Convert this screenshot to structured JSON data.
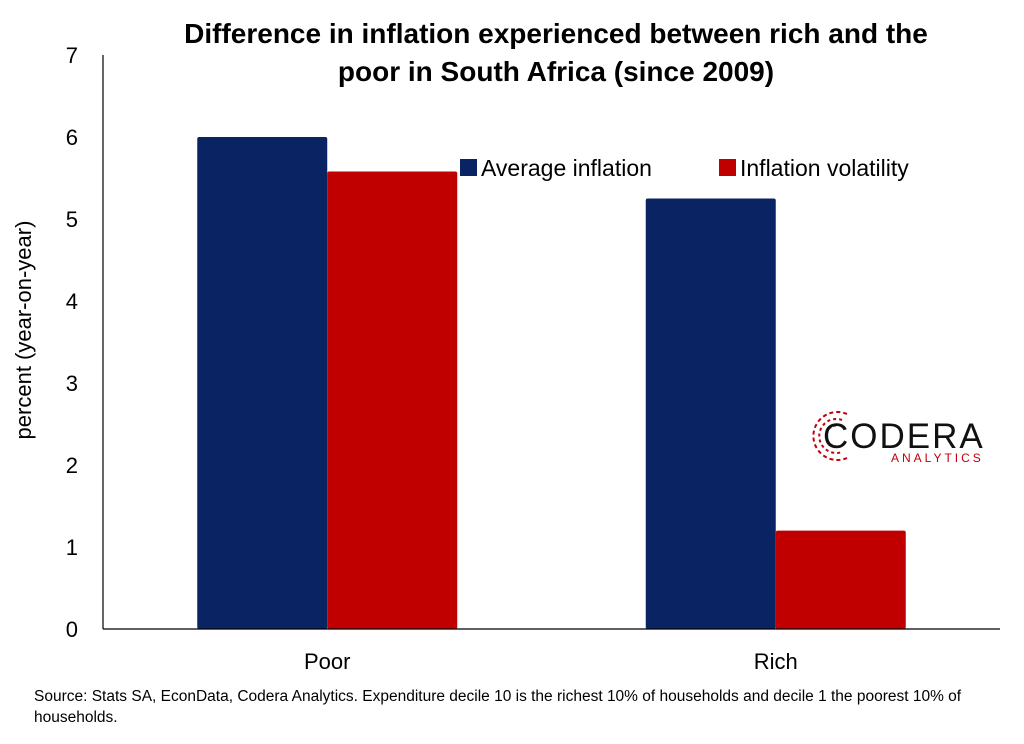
{
  "chart_data": {
    "type": "bar",
    "title_lines": [
      "Difference in inflation experienced between rich and the",
      "poor in South Africa (since 2009)"
    ],
    "ylabel": "percent (year-on-year)",
    "xlabel": "",
    "categories": [
      "Poor",
      "Rich"
    ],
    "series": [
      {
        "name": "Average inflation",
        "color": "#0a2363",
        "values": [
          6.0,
          5.25
        ]
      },
      {
        "name": "Inflation volatility",
        "color": "#c00000",
        "values": [
          5.58,
          1.2
        ]
      }
    ],
    "ylim": [
      0,
      7
    ],
    "yticks": [
      "0",
      "1",
      "2",
      "3",
      "4",
      "5",
      "6",
      "7"
    ],
    "grid": false,
    "legend_position": "top-right"
  },
  "source_note": "Source: Stats SA, EconData, Codera Analytics. Expenditure decile 10 is the richest 10% of households and decile 1 the poorest 10% of households.",
  "logo": {
    "main": "CODERA",
    "sub": "ANALYTICS",
    "accent_color": "#c0000a"
  }
}
